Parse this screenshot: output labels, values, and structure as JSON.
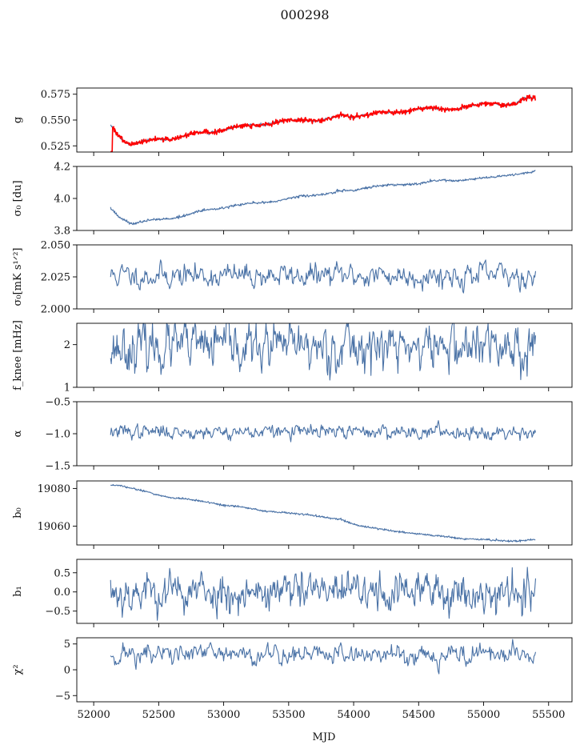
{
  "figure": {
    "title": "000298"
  },
  "colors": {
    "series": "#4a72a6",
    "overlay": "#ff0000",
    "axes": "#000000"
  },
  "chart_data": [
    {
      "type": "line",
      "ylabel": "g",
      "ylim": [
        0.519,
        0.581
      ],
      "yticks": [
        0.525,
        0.55,
        0.575
      ],
      "ytick_labels": [
        "0.525",
        "0.550",
        "0.575"
      ],
      "xlim": [
        51870,
        55680
      ],
      "series": [
        {
          "kind": "main",
          "noise": 0.0006,
          "x": [
            52130,
            52180,
            52230,
            52280,
            52400,
            52500,
            52600,
            52700,
            52800,
            52900,
            53000,
            53100,
            53200,
            53300,
            53400,
            53500,
            53600,
            53700,
            53800,
            53900,
            54000,
            54100,
            54200,
            54300,
            54400,
            54500,
            54600,
            54700,
            54800,
            54900,
            55000,
            55100,
            55150,
            55200,
            55250,
            55300,
            55350,
            55400
          ],
          "y": [
            0.546,
            0.537,
            0.529,
            0.526,
            0.53,
            0.532,
            0.531,
            0.535,
            0.538,
            0.538,
            0.54,
            0.544,
            0.545,
            0.545,
            0.548,
            0.55,
            0.55,
            0.549,
            0.551,
            0.555,
            0.553,
            0.555,
            0.558,
            0.557,
            0.558,
            0.561,
            0.562,
            0.56,
            0.56,
            0.564,
            0.566,
            0.566,
            0.564,
            0.565,
            0.566,
            0.57,
            0.572,
            0.571
          ]
        },
        {
          "kind": "overlay",
          "noise": 0.0012,
          "x": [
            52130,
            52180,
            52230,
            52280,
            52400,
            52500,
            52600,
            52700,
            52800,
            52900,
            53000,
            53100,
            53200,
            53300,
            53400,
            53500,
            53600,
            53700,
            53800,
            53900,
            54000,
            54100,
            54200,
            54300,
            54400,
            54500,
            54600,
            54700,
            54800,
            54900,
            55000,
            55100,
            55150,
            55200,
            55250,
            55300,
            55350,
            55400
          ],
          "y": [
            0.546,
            0.537,
            0.529,
            0.526,
            0.53,
            0.532,
            0.531,
            0.535,
            0.538,
            0.538,
            0.54,
            0.544,
            0.545,
            0.545,
            0.548,
            0.55,
            0.55,
            0.549,
            0.551,
            0.555,
            0.553,
            0.555,
            0.558,
            0.557,
            0.558,
            0.561,
            0.562,
            0.56,
            0.56,
            0.564,
            0.566,
            0.566,
            0.564,
            0.565,
            0.566,
            0.57,
            0.572,
            0.571
          ]
        }
      ]
    },
    {
      "type": "line",
      "ylabel": "σ₀ [du]",
      "ylim": [
        3.8,
        4.2
      ],
      "yticks": [
        3.8,
        4.0,
        4.2
      ],
      "ytick_labels": [
        "3.8",
        "4.0",
        "4.2"
      ],
      "xlim": [
        51870,
        55680
      ],
      "series": [
        {
          "kind": "main",
          "noise": 0.004,
          "x": [
            52130,
            52200,
            52300,
            52400,
            52500,
            52600,
            52700,
            52800,
            52900,
            53000,
            53100,
            53200,
            53300,
            53400,
            53500,
            53600,
            53700,
            53800,
            53900,
            54000,
            54100,
            54200,
            54300,
            54400,
            54500,
            54600,
            54700,
            54800,
            54900,
            55000,
            55100,
            55200,
            55300,
            55400
          ],
          "y": [
            3.94,
            3.88,
            3.84,
            3.86,
            3.87,
            3.875,
            3.89,
            3.92,
            3.93,
            3.94,
            3.96,
            3.97,
            3.975,
            3.98,
            4.0,
            4.015,
            4.02,
            4.03,
            4.05,
            4.05,
            4.065,
            4.08,
            4.085,
            4.085,
            4.09,
            4.11,
            4.115,
            4.11,
            4.12,
            4.13,
            4.135,
            4.145,
            4.155,
            4.17
          ]
        }
      ]
    },
    {
      "type": "line",
      "ylabel": "σ₀[mK s¹ᐟ²]",
      "ylim": [
        2.0,
        2.05
      ],
      "yticks": [
        2.0,
        2.025,
        2.05
      ],
      "ytick_labels": [
        "2.000",
        "2.025",
        "2.050"
      ],
      "xlim": [
        51870,
        55680
      ],
      "series": [
        {
          "kind": "main",
          "noise": 0.004,
          "mean": 2.026,
          "start": 52130,
          "end": 55400,
          "n": 520,
          "seed": 11
        }
      ]
    },
    {
      "type": "line",
      "ylabel": "f_knee [mHz]",
      "ylim": [
        1.0,
        2.5
      ],
      "yticks": [
        1,
        2
      ],
      "ytick_labels": [
        "1",
        "2"
      ],
      "xlim": [
        51870,
        55680
      ],
      "series": [
        {
          "kind": "main",
          "noise": 0.24,
          "mean": 1.95,
          "start": 52130,
          "end": 55400,
          "n": 600,
          "seed": 23
        }
      ]
    },
    {
      "type": "line",
      "ylabel": "α",
      "ylim": [
        -1.5,
        -0.5
      ],
      "yticks": [
        -1.5,
        -1.0,
        -0.5
      ],
      "ytick_labels": [
        "−1.5",
        "−1.0",
        "−0.5"
      ],
      "xlim": [
        51870,
        55680
      ],
      "series": [
        {
          "kind": "main",
          "noise": 0.045,
          "mean": -0.97,
          "start": 52130,
          "end": 55400,
          "n": 600,
          "seed": 37
        }
      ]
    },
    {
      "type": "line",
      "ylabel": "b₀",
      "ylim": [
        19050,
        19084
      ],
      "yticks": [
        19060,
        19080
      ],
      "ytick_labels": [
        "19060",
        "19080"
      ],
      "xlim": [
        51870,
        55680
      ],
      "series": [
        {
          "kind": "main",
          "noise": 0.25,
          "x": [
            52130,
            52200,
            52300,
            52400,
            52500,
            52600,
            52700,
            52800,
            52900,
            53000,
            53100,
            53200,
            53300,
            53400,
            53500,
            53600,
            53700,
            53800,
            53900,
            54000,
            54100,
            54200,
            54300,
            54400,
            54500,
            54600,
            54700,
            54800,
            54900,
            55000,
            55100,
            55200,
            55300,
            55400
          ],
          "y": [
            19082,
            19081.5,
            19080,
            19078.5,
            19076.5,
            19075,
            19074.5,
            19073.5,
            19072.5,
            19071,
            19070.5,
            19069.5,
            19068,
            19067.5,
            19067,
            19066.5,
            19065.5,
            19064.5,
            19063.5,
            19061,
            19059.5,
            19058.5,
            19057.5,
            19056.5,
            19056,
            19055,
            19054.5,
            19053.5,
            19053,
            19053,
            19052.5,
            19052,
            19052.5,
            19053
          ]
        }
      ]
    },
    {
      "type": "line",
      "ylabel": "b₁",
      "ylim": [
        -0.82,
        0.85
      ],
      "yticks": [
        -0.5,
        0.0,
        0.5
      ],
      "ytick_labels": [
        "−0.5",
        "0.0",
        "0.5"
      ],
      "xlim": [
        51870,
        55680
      ],
      "series": [
        {
          "kind": "main",
          "noise": 0.22,
          "mean": 0.0,
          "start": 52130,
          "end": 55400,
          "n": 620,
          "seed": 53
        }
      ]
    },
    {
      "type": "line",
      "ylabel": "χ²",
      "ylim": [
        -6.2,
        6.2
      ],
      "yticks": [
        -5,
        0,
        5
      ],
      "ytick_labels": [
        "−5",
        "0",
        "5"
      ],
      "xlim": [
        51870,
        55680
      ],
      "xticks": [
        52000,
        52500,
        53000,
        53500,
        54000,
        54500,
        55000,
        55500
      ],
      "xtick_labels": [
        "52000",
        "52500",
        "53000",
        "53500",
        "54000",
        "54500",
        "55000",
        "55500"
      ],
      "xlabel": "MJD",
      "series": [
        {
          "kind": "main",
          "noise": 0.9,
          "mean": 3.0,
          "start": 52130,
          "end": 55400,
          "n": 520,
          "seed": 71
        }
      ]
    }
  ]
}
